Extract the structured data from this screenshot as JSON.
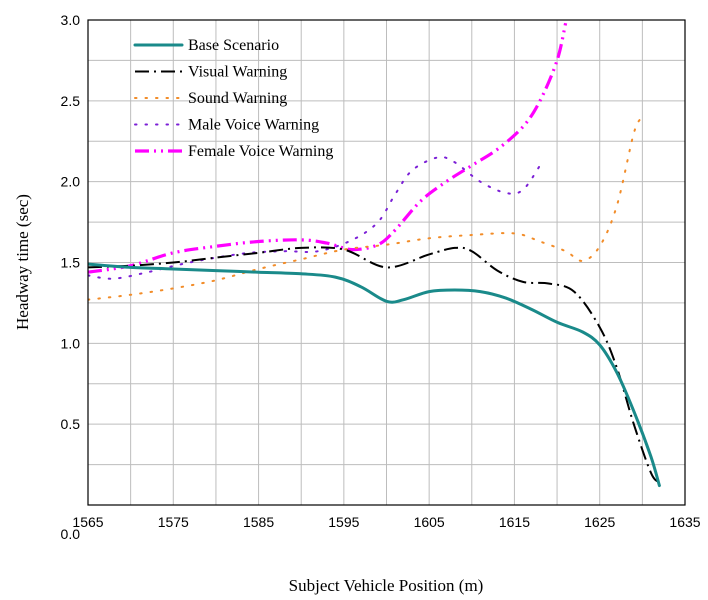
{
  "chart_data": {
    "type": "line",
    "title": "",
    "xlabel": "Subject Vehicle Position (m)",
    "ylabel": "Headway time (sec)",
    "xlim": [
      1565,
      1635
    ],
    "ylim": [
      0.0,
      3.0
    ],
    "x_ticks": [
      "1565",
      "1575",
      "1585",
      "1595",
      "1605",
      "1615",
      "1625",
      "1635"
    ],
    "y_ticks": [
      "0.0",
      "0.5",
      "1.0",
      "1.5",
      "2.0",
      "2.5",
      "3.0"
    ],
    "grid": true,
    "legend_position": "top-left",
    "series": [
      {
        "name": "Base Scenario",
        "color": "#1a8a8a",
        "style": "solid",
        "points": [
          [
            1565,
            1.49
          ],
          [
            1570,
            1.47
          ],
          [
            1575,
            1.46
          ],
          [
            1580,
            1.45
          ],
          [
            1585,
            1.44
          ],
          [
            1590,
            1.43
          ],
          [
            1594,
            1.41
          ],
          [
            1597,
            1.35
          ],
          [
            1600,
            1.26
          ],
          [
            1602,
            1.27
          ],
          [
            1605,
            1.32
          ],
          [
            1608,
            1.33
          ],
          [
            1611,
            1.32
          ],
          [
            1614,
            1.28
          ],
          [
            1617,
            1.21
          ],
          [
            1620,
            1.13
          ],
          [
            1623,
            1.07
          ],
          [
            1625,
            0.99
          ],
          [
            1627,
            0.82
          ],
          [
            1629,
            0.58
          ],
          [
            1631,
            0.3
          ],
          [
            1632,
            0.12
          ]
        ]
      },
      {
        "name": "Visual Warning",
        "color": "#000000",
        "style": "dashdot",
        "points": [
          [
            1565,
            1.47
          ],
          [
            1570,
            1.48
          ],
          [
            1575,
            1.5
          ],
          [
            1580,
            1.53
          ],
          [
            1585,
            1.56
          ],
          [
            1590,
            1.59
          ],
          [
            1595,
            1.58
          ],
          [
            1600,
            1.47
          ],
          [
            1605,
            1.55
          ],
          [
            1608,
            1.59
          ],
          [
            1610,
            1.57
          ],
          [
            1613,
            1.45
          ],
          [
            1616,
            1.38
          ],
          [
            1619,
            1.37
          ],
          [
            1622,
            1.32
          ],
          [
            1625,
            1.1
          ],
          [
            1627,
            0.85
          ],
          [
            1629,
            0.5
          ],
          [
            1631,
            0.2
          ],
          [
            1632,
            0.14
          ]
        ]
      },
      {
        "name": "Sound Warning",
        "color": "#f28c28",
        "style": "dotted",
        "points": [
          [
            1565,
            1.27
          ],
          [
            1570,
            1.3
          ],
          [
            1575,
            1.34
          ],
          [
            1580,
            1.39
          ],
          [
            1585,
            1.46
          ],
          [
            1590,
            1.52
          ],
          [
            1595,
            1.58
          ],
          [
            1600,
            1.61
          ],
          [
            1605,
            1.65
          ],
          [
            1610,
            1.67
          ],
          [
            1615,
            1.68
          ],
          [
            1618,
            1.63
          ],
          [
            1621,
            1.57
          ],
          [
            1623,
            1.51
          ],
          [
            1625,
            1.6
          ],
          [
            1627,
            1.85
          ],
          [
            1629,
            2.3
          ],
          [
            1630,
            2.4
          ]
        ]
      },
      {
        "name": "Male Voice Warning",
        "color": "#7b1fd6",
        "style": "dotted",
        "points": [
          [
            1565,
            1.42
          ],
          [
            1568,
            1.4
          ],
          [
            1572,
            1.44
          ],
          [
            1576,
            1.49
          ],
          [
            1580,
            1.53
          ],
          [
            1584,
            1.56
          ],
          [
            1588,
            1.57
          ],
          [
            1592,
            1.57
          ],
          [
            1596,
            1.64
          ],
          [
            1599,
            1.75
          ],
          [
            1601,
            1.92
          ],
          [
            1603,
            2.07
          ],
          [
            1606,
            2.15
          ],
          [
            1608,
            2.12
          ],
          [
            1611,
            2.0
          ],
          [
            1614,
            1.93
          ],
          [
            1616,
            1.95
          ],
          [
            1618,
            2.1
          ]
        ]
      },
      {
        "name": "Female Voice Warning",
        "color": "#ff00ff",
        "style": "dashdotdot",
        "points": [
          [
            1565,
            1.44
          ],
          [
            1570,
            1.48
          ],
          [
            1575,
            1.56
          ],
          [
            1580,
            1.6
          ],
          [
            1585,
            1.63
          ],
          [
            1590,
            1.64
          ],
          [
            1593,
            1.62
          ],
          [
            1596,
            1.58
          ],
          [
            1599,
            1.61
          ],
          [
            1601,
            1.7
          ],
          [
            1604,
            1.88
          ],
          [
            1607,
            2.0
          ],
          [
            1610,
            2.1
          ],
          [
            1613,
            2.2
          ],
          [
            1616,
            2.34
          ],
          [
            1618,
            2.5
          ],
          [
            1620,
            2.75
          ],
          [
            1621,
            2.98
          ]
        ]
      }
    ]
  }
}
